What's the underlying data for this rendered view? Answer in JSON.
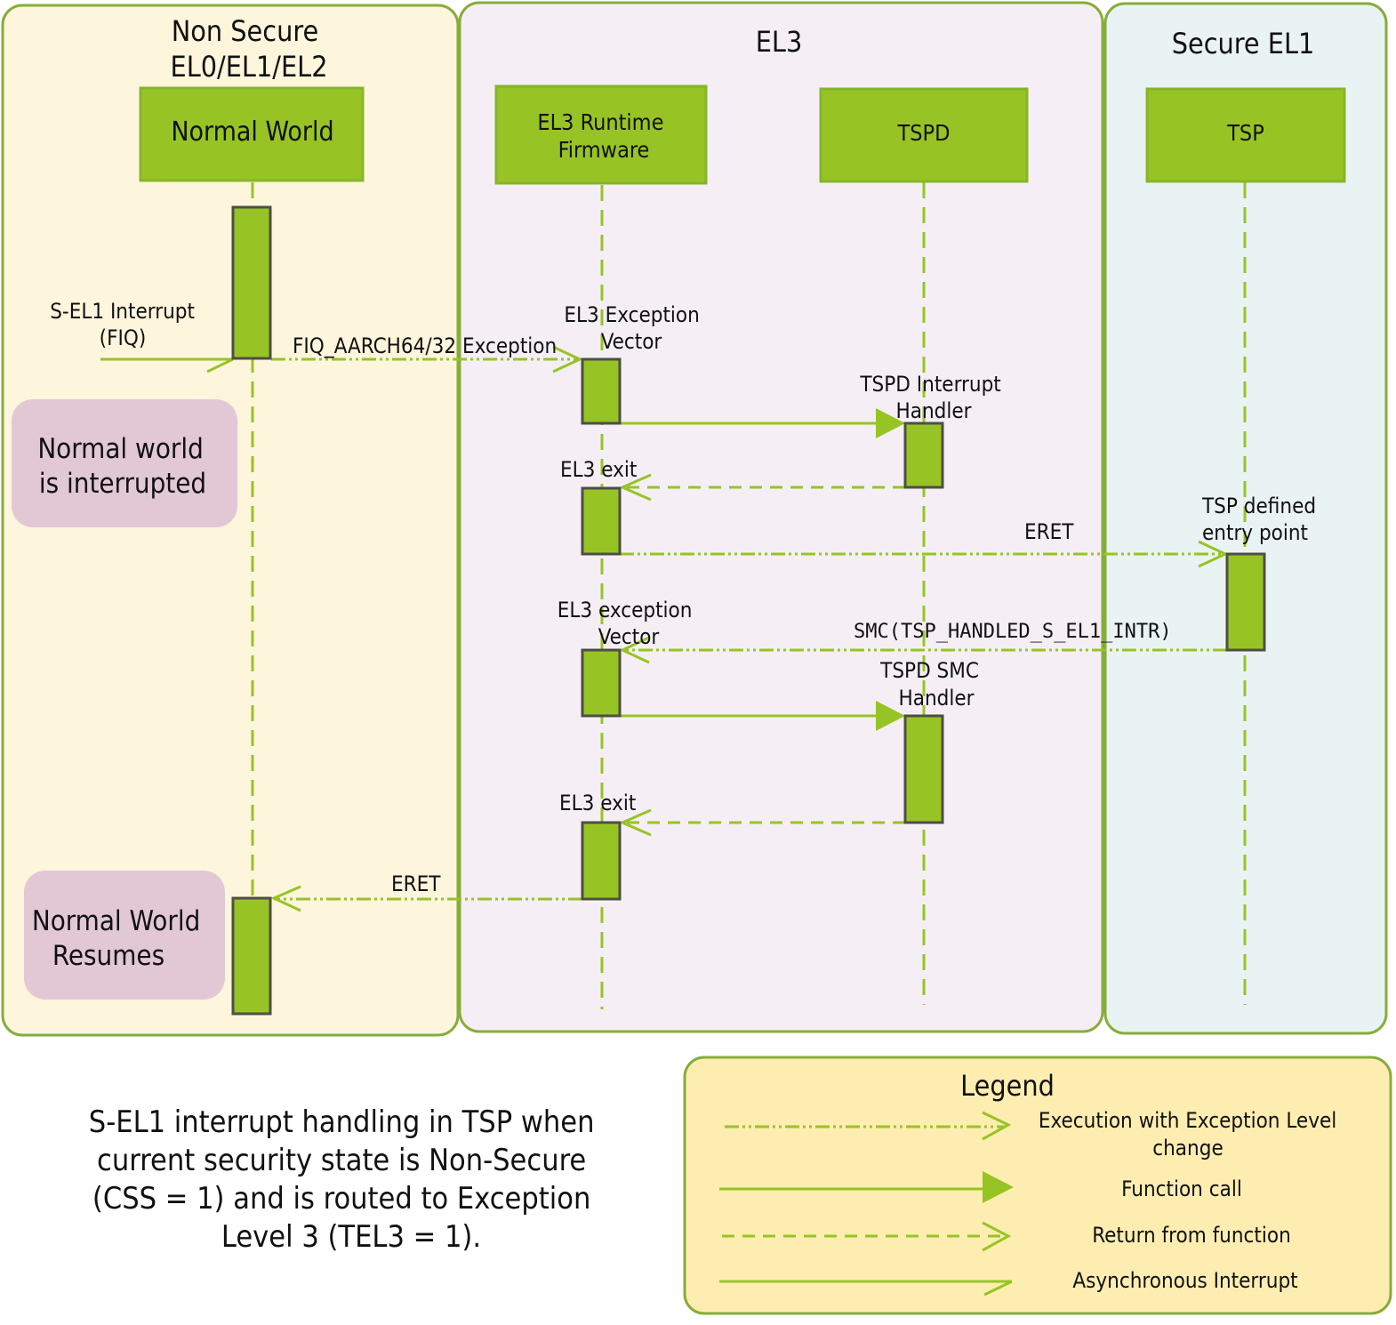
{
  "colors": {
    "accent_green": "#97c424",
    "non_secure_bg": "#fdf5dc",
    "el3_bg": "#f5eff5",
    "secure_bg": "#eaf3f3",
    "legend_bg": "#feedb0",
    "note_bg": "#e2c8d4"
  },
  "panels": {
    "non_secure": [
      "Non Secure",
      "EL0/EL1/EL2"
    ],
    "el3": "EL3",
    "secure_el1": "Secure EL1"
  },
  "lifelines": {
    "normal_world": "Normal World",
    "el3_runtime": [
      "EL3 Runtime",
      "Firmware"
    ],
    "tspd": "TSPD",
    "tsp": "TSP"
  },
  "labels": {
    "sel1_interrupt": [
      "S-EL1 Interrupt",
      "(FIQ)"
    ],
    "fiq_exception": "FIQ_AARCH64/32 Exception",
    "el3_exception_vector": [
      "EL3 Exception",
      "Vector"
    ],
    "tspd_interrupt_handler": [
      "TSPD Interrupt",
      "Handler"
    ],
    "el3_exit_1": "EL3 exit",
    "eret_1": "ERET",
    "tsp_entry": [
      "TSP defined",
      "entry point"
    ],
    "el3_exception_vector_2": [
      "EL3 exception",
      "Vector"
    ],
    "smc": "SMC(TSP_HANDLED_S_EL1_INTR)",
    "tspd_smc_handler": [
      "TSPD SMC",
      "Handler"
    ],
    "el3_exit_2": "EL3 exit",
    "eret_2": "ERET"
  },
  "notes": {
    "interrupted": [
      "Normal world",
      "is interrupted"
    ],
    "resumes": [
      "Normal World",
      "Resumes"
    ]
  },
  "caption": [
    "S-EL1 interrupt handling in TSP when",
    "current security state is Non-Secure",
    "(CSS = 1) and is routed to Exception",
    "Level 3 (TEL3 = 1)."
  ],
  "legend": {
    "title": "Legend",
    "items": [
      {
        "style": "dash-dot-dot open arrow",
        "label": [
          "Execution with Exception Level",
          "change"
        ]
      },
      {
        "style": "solid filled arrow",
        "label": [
          "Function call"
        ]
      },
      {
        "style": "dashed open arrow",
        "label": [
          "Return from function"
        ]
      },
      {
        "style": "solid open arrow",
        "label": [
          "Asynchronous Interrupt"
        ]
      }
    ]
  }
}
